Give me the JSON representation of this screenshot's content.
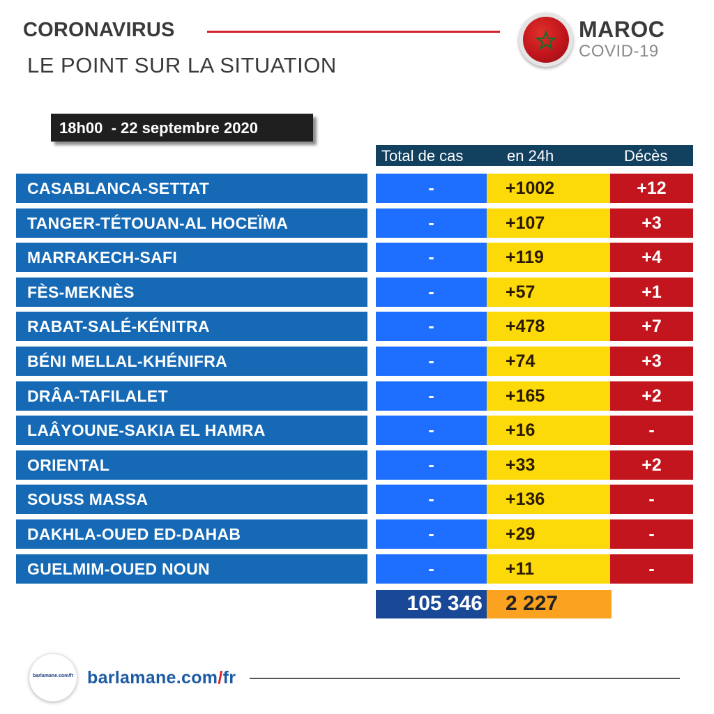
{
  "header": {
    "title": "CORONAVIRUS",
    "subtitle": "LE POINT SUR LA SITUATION",
    "country": "MAROC",
    "tag": "COVID-19"
  },
  "date_label": "18h00  - 22 septembre 2020",
  "columns": {
    "total": "Total de cas",
    "h24": "en 24h",
    "deaths": "Décès"
  },
  "rows": [
    {
      "region": "CASABLANCA-SETTAT",
      "total": "-",
      "h24": "+1002",
      "deaths": "+12"
    },
    {
      "region": "TANGER-TÉTOUAN-AL HOCEÏMA",
      "total": "-",
      "h24": "+107",
      "deaths": "+3"
    },
    {
      "region": "MARRAKECH-SAFI",
      "total": "-",
      "h24": "+119",
      "deaths": "+4"
    },
    {
      "region": "FÈS-MEKNÈS",
      "total": "-",
      "h24": "+57",
      "deaths": "+1"
    },
    {
      "region": "RABAT-SALÉ-KÉNITRA",
      "total": "-",
      "h24": "+478",
      "deaths": "+7"
    },
    {
      "region": "BÉNI MELLAL-KHÉNIFRA",
      "total": "-",
      "h24": "+74",
      "deaths": "+3"
    },
    {
      "region": "DRÂA-TAFILALET",
      "total": "-",
      "h24": "+165",
      "deaths": "+2"
    },
    {
      "region": "LAÂYOUNE-SAKIA EL HAMRA",
      "total": "-",
      "h24": "+16",
      "deaths": "-"
    },
    {
      "region": "ORIENTAL",
      "total": "-",
      "h24": "+33",
      "deaths": "+2"
    },
    {
      "region": "SOUSS MASSA",
      "total": "-",
      "h24": "+136",
      "deaths": "-"
    },
    {
      "region": "DAKHLA-OUED ED-DAHAB",
      "total": "-",
      "h24": "+29",
      "deaths": "-"
    },
    {
      "region": "GUELMIM-OUED NOUN",
      "total": "-",
      "h24": "+11",
      "deaths": "-"
    }
  ],
  "totals": {
    "total": "105 346",
    "h24": "2 227"
  },
  "footer": {
    "logo_text": "barlamane.com/fr",
    "url_main": "barlamane.com",
    "url_slash": "/",
    "url_lang": "fr"
  },
  "icons": {
    "flag": "morocco-flag-icon"
  },
  "colors": {
    "region_bg": "#1669b5",
    "total_bg": "#1e6fff",
    "h24_bg": "#fcd908",
    "deaths_bg": "#c2151d",
    "header_bg": "#12405f",
    "accent": "#d8212b"
  }
}
